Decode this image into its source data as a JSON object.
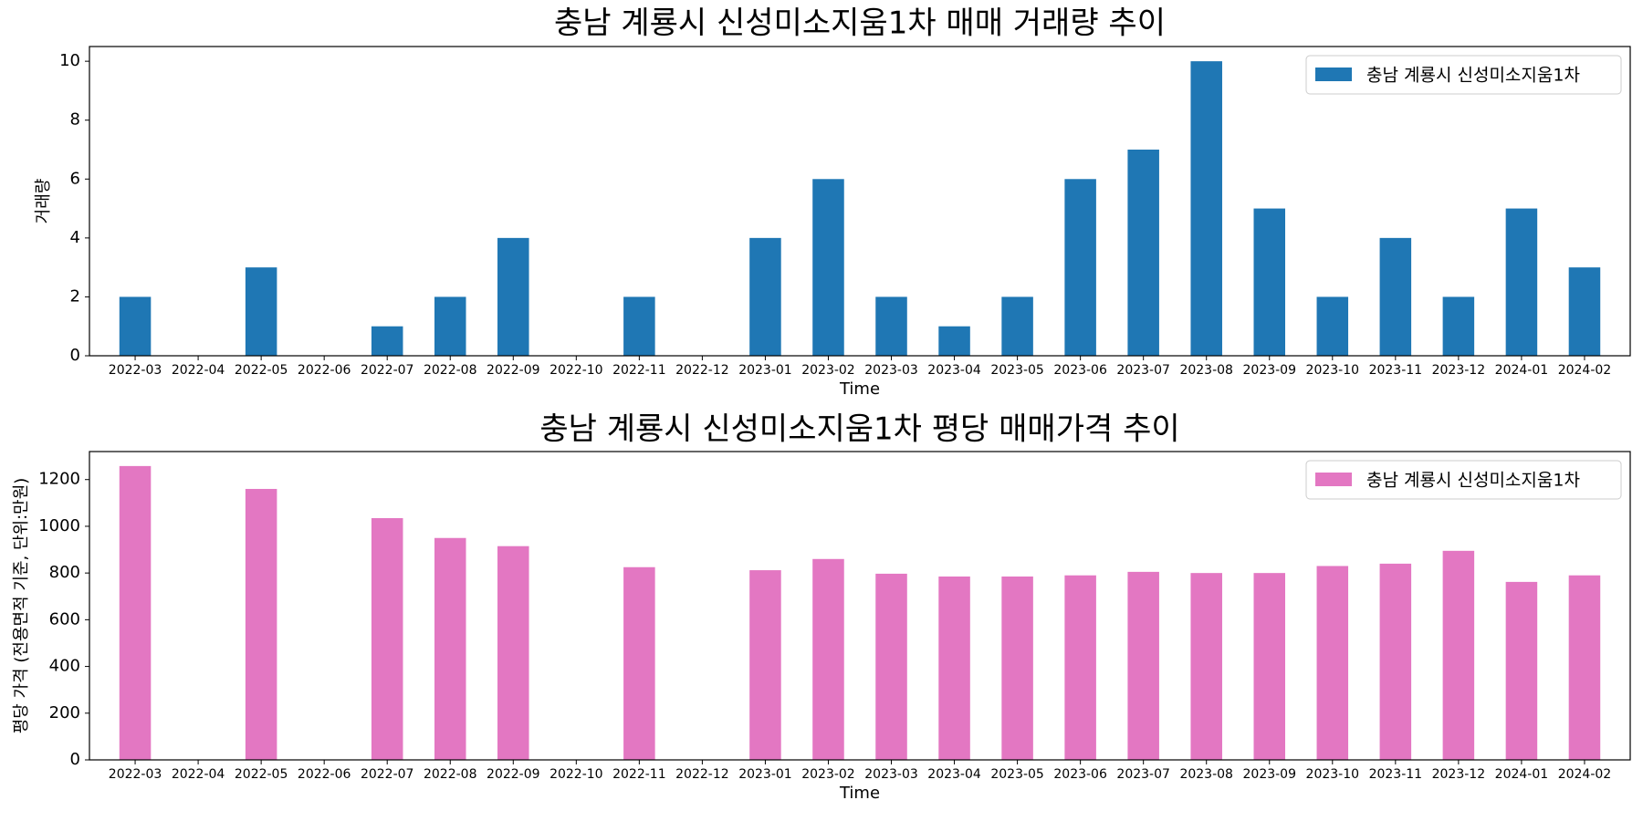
{
  "chart_data": [
    {
      "type": "bar",
      "title": "충남 계룡시 신성미소지움1차 매매 거래량 추이",
      "xlabel": "Time",
      "ylabel": "거래량",
      "ylim": [
        0,
        10.5
      ],
      "yticks": [
        0,
        2,
        4,
        6,
        8,
        10
      ],
      "grid": false,
      "legend_position": "top-right",
      "categories": [
        "2022-03",
        "2022-04",
        "2022-05",
        "2022-06",
        "2022-07",
        "2022-08",
        "2022-09",
        "2022-10",
        "2022-11",
        "2022-12",
        "2023-01",
        "2023-02",
        "2023-03",
        "2023-04",
        "2023-05",
        "2023-06",
        "2023-07",
        "2023-08",
        "2023-09",
        "2023-10",
        "2023-11",
        "2023-12",
        "2024-01",
        "2024-02"
      ],
      "series": [
        {
          "name": "충남 계룡시 신성미소지움1차",
          "color": "#1f77b4",
          "values": [
            2,
            0,
            3,
            0,
            1,
            2,
            4,
            0,
            2,
            0,
            4,
            6,
            2,
            1,
            2,
            6,
            7,
            10,
            5,
            2,
            4,
            2,
            5,
            3
          ]
        }
      ]
    },
    {
      "type": "bar",
      "title": "충남 계룡시 신성미소지움1차 평당 매매가격 추이",
      "xlabel": "Time",
      "ylabel": "평당 가격 (전용면적 기준, 단위:만원)",
      "ylim": [
        0,
        1320
      ],
      "yticks": [
        0,
        200,
        400,
        600,
        800,
        1000,
        1200
      ],
      "grid": false,
      "legend_position": "top-right",
      "categories": [
        "2022-03",
        "2022-04",
        "2022-05",
        "2022-06",
        "2022-07",
        "2022-08",
        "2022-09",
        "2022-10",
        "2022-11",
        "2022-12",
        "2023-01",
        "2023-02",
        "2023-03",
        "2023-04",
        "2023-05",
        "2023-06",
        "2023-07",
        "2023-08",
        "2023-09",
        "2023-10",
        "2023-11",
        "2023-12",
        "2024-01",
        "2024-02"
      ],
      "series": [
        {
          "name": "충남 계룡시 신성미소지움1차",
          "color": "#e377c2",
          "values": [
            1258,
            0,
            1160,
            0,
            1035,
            950,
            915,
            0,
            825,
            0,
            812,
            860,
            797,
            785,
            785,
            790,
            805,
            800,
            800,
            830,
            840,
            895,
            762,
            790
          ]
        }
      ]
    }
  ]
}
